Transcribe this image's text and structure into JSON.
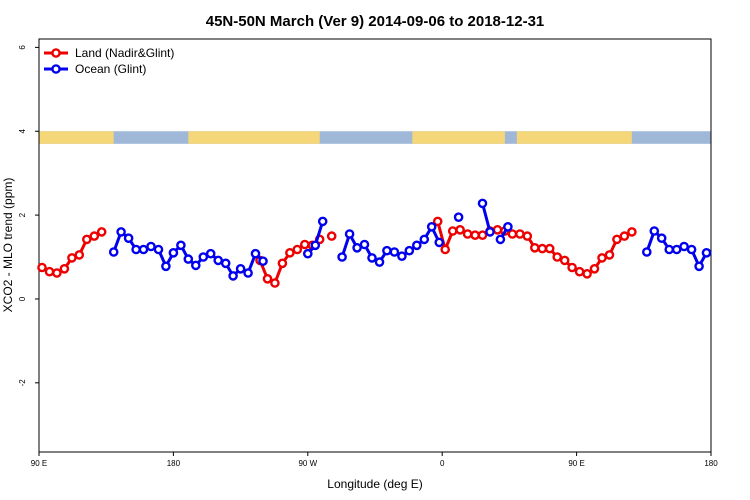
{
  "chart_data": {
    "type": "line",
    "title": "45N-50N March (Ver 9)   2014-09-06 to 2018-12-31",
    "xlabel": "Longitude (deg E)",
    "ylabel": "XCO2 - MLO trend (ppm)",
    "xlim": [
      90,
      540
    ],
    "ylim": [
      -3.65,
      6.2
    ],
    "xticks": [
      {
        "value": 90,
        "label": "90 E"
      },
      {
        "value": 180,
        "label": "180"
      },
      {
        "value": 270,
        "label": "90 W"
      },
      {
        "value": 360,
        "label": "0"
      },
      {
        "value": 450,
        "label": "90 E"
      },
      {
        "value": 540,
        "label": "180"
      }
    ],
    "yticks": [
      {
        "value": -2,
        "label": "-2"
      },
      {
        "value": 0,
        "label": "0"
      },
      {
        "value": 2,
        "label": "2"
      },
      {
        "value": 4,
        "label": "4"
      },
      {
        "value": 6,
        "label": "6"
      }
    ],
    "legend_position": "top-left",
    "land_ocean_band": {
      "y_range": [
        3.7,
        4.0
      ],
      "land_color": "#f5d77a",
      "ocean_color": "#9fb8d8"
    },
    "series": [
      {
        "name": "Land (Nadir&Glint)",
        "color": "#ee0000",
        "segments": [
          [
            [
              92,
              0.75
            ],
            [
              97,
              0.65
            ],
            [
              102,
              0.62
            ],
            [
              107,
              0.72
            ],
            [
              112,
              0.98
            ],
            [
              117,
              1.05
            ],
            [
              122,
              1.42
            ],
            [
              127,
              1.5
            ],
            [
              132,
              1.6
            ]
          ],
          [
            [
              238,
              0.92
            ],
            [
              243,
              0.48
            ],
            [
              248,
              0.38
            ],
            [
              253,
              0.85
            ],
            [
              258,
              1.1
            ],
            [
              263,
              1.18
            ],
            [
              268,
              1.3
            ],
            [
              273,
              1.28
            ],
            [
              278,
              1.42
            ]
          ],
          [
            [
              286,
              1.5
            ]
          ],
          [
            [
              357,
              1.85
            ],
            [
              362,
              1.18
            ],
            [
              367,
              1.62
            ],
            [
              372,
              1.65
            ],
            [
              377,
              1.55
            ],
            [
              382,
              1.52
            ],
            [
              387,
              1.52
            ],
            [
              392,
              1.62
            ],
            [
              397,
              1.65
            ],
            [
              402,
              1.62
            ],
            [
              407,
              1.55
            ],
            [
              412,
              1.55
            ],
            [
              417,
              1.5
            ],
            [
              422,
              1.22
            ],
            [
              427,
              1.2
            ],
            [
              432,
              1.2
            ],
            [
              437,
              1.0
            ],
            [
              442,
              0.92
            ],
            [
              447,
              0.75
            ],
            [
              452,
              0.65
            ],
            [
              457,
              0.6
            ],
            [
              462,
              0.72
            ],
            [
              467,
              0.98
            ],
            [
              472,
              1.05
            ],
            [
              477,
              1.42
            ],
            [
              482,
              1.5
            ],
            [
              487,
              1.6
            ]
          ]
        ]
      },
      {
        "name": "Ocean (Glint)",
        "color": "#0000ee",
        "segments": [
          [
            [
              140,
              1.12
            ],
            [
              145,
              1.6
            ],
            [
              150,
              1.45
            ],
            [
              155,
              1.18
            ],
            [
              160,
              1.18
            ],
            [
              165,
              1.25
            ],
            [
              170,
              1.18
            ],
            [
              175,
              0.78
            ],
            [
              180,
              1.1
            ],
            [
              185,
              1.28
            ],
            [
              190,
              0.95
            ],
            [
              195,
              0.8
            ],
            [
              200,
              1.0
            ],
            [
              205,
              1.08
            ],
            [
              210,
              0.92
            ],
            [
              215,
              0.85
            ],
            [
              220,
              0.55
            ],
            [
              225,
              0.72
            ],
            [
              230,
              0.62
            ],
            [
              235,
              1.08
            ],
            [
              240,
              0.9
            ]
          ],
          [
            [
              270,
              1.08
            ],
            [
              275,
              1.28
            ],
            [
              280,
              1.85
            ]
          ],
          [
            [
              293,
              1.0
            ],
            [
              298,
              1.55
            ],
            [
              303,
              1.22
            ],
            [
              308,
              1.3
            ],
            [
              313,
              0.98
            ],
            [
              318,
              0.88
            ],
            [
              323,
              1.15
            ],
            [
              328,
              1.12
            ],
            [
              333,
              1.02
            ],
            [
              338,
              1.15
            ],
            [
              343,
              1.28
            ],
            [
              348,
              1.42
            ],
            [
              353,
              1.72
            ],
            [
              358,
              1.35
            ]
          ],
          [
            [
              371,
              1.95
            ]
          ],
          [
            [
              387,
              2.28
            ],
            [
              392,
              1.6
            ]
          ],
          [
            [
              399,
              1.42
            ],
            [
              404,
              1.72
            ]
          ],
          [
            [
              497,
              1.12
            ],
            [
              502,
              1.62
            ],
            [
              507,
              1.45
            ],
            [
              512,
              1.18
            ],
            [
              517,
              1.18
            ],
            [
              522,
              1.25
            ],
            [
              527,
              1.18
            ],
            [
              532,
              0.78
            ],
            [
              537,
              1.1
            ]
          ]
        ]
      }
    ]
  }
}
